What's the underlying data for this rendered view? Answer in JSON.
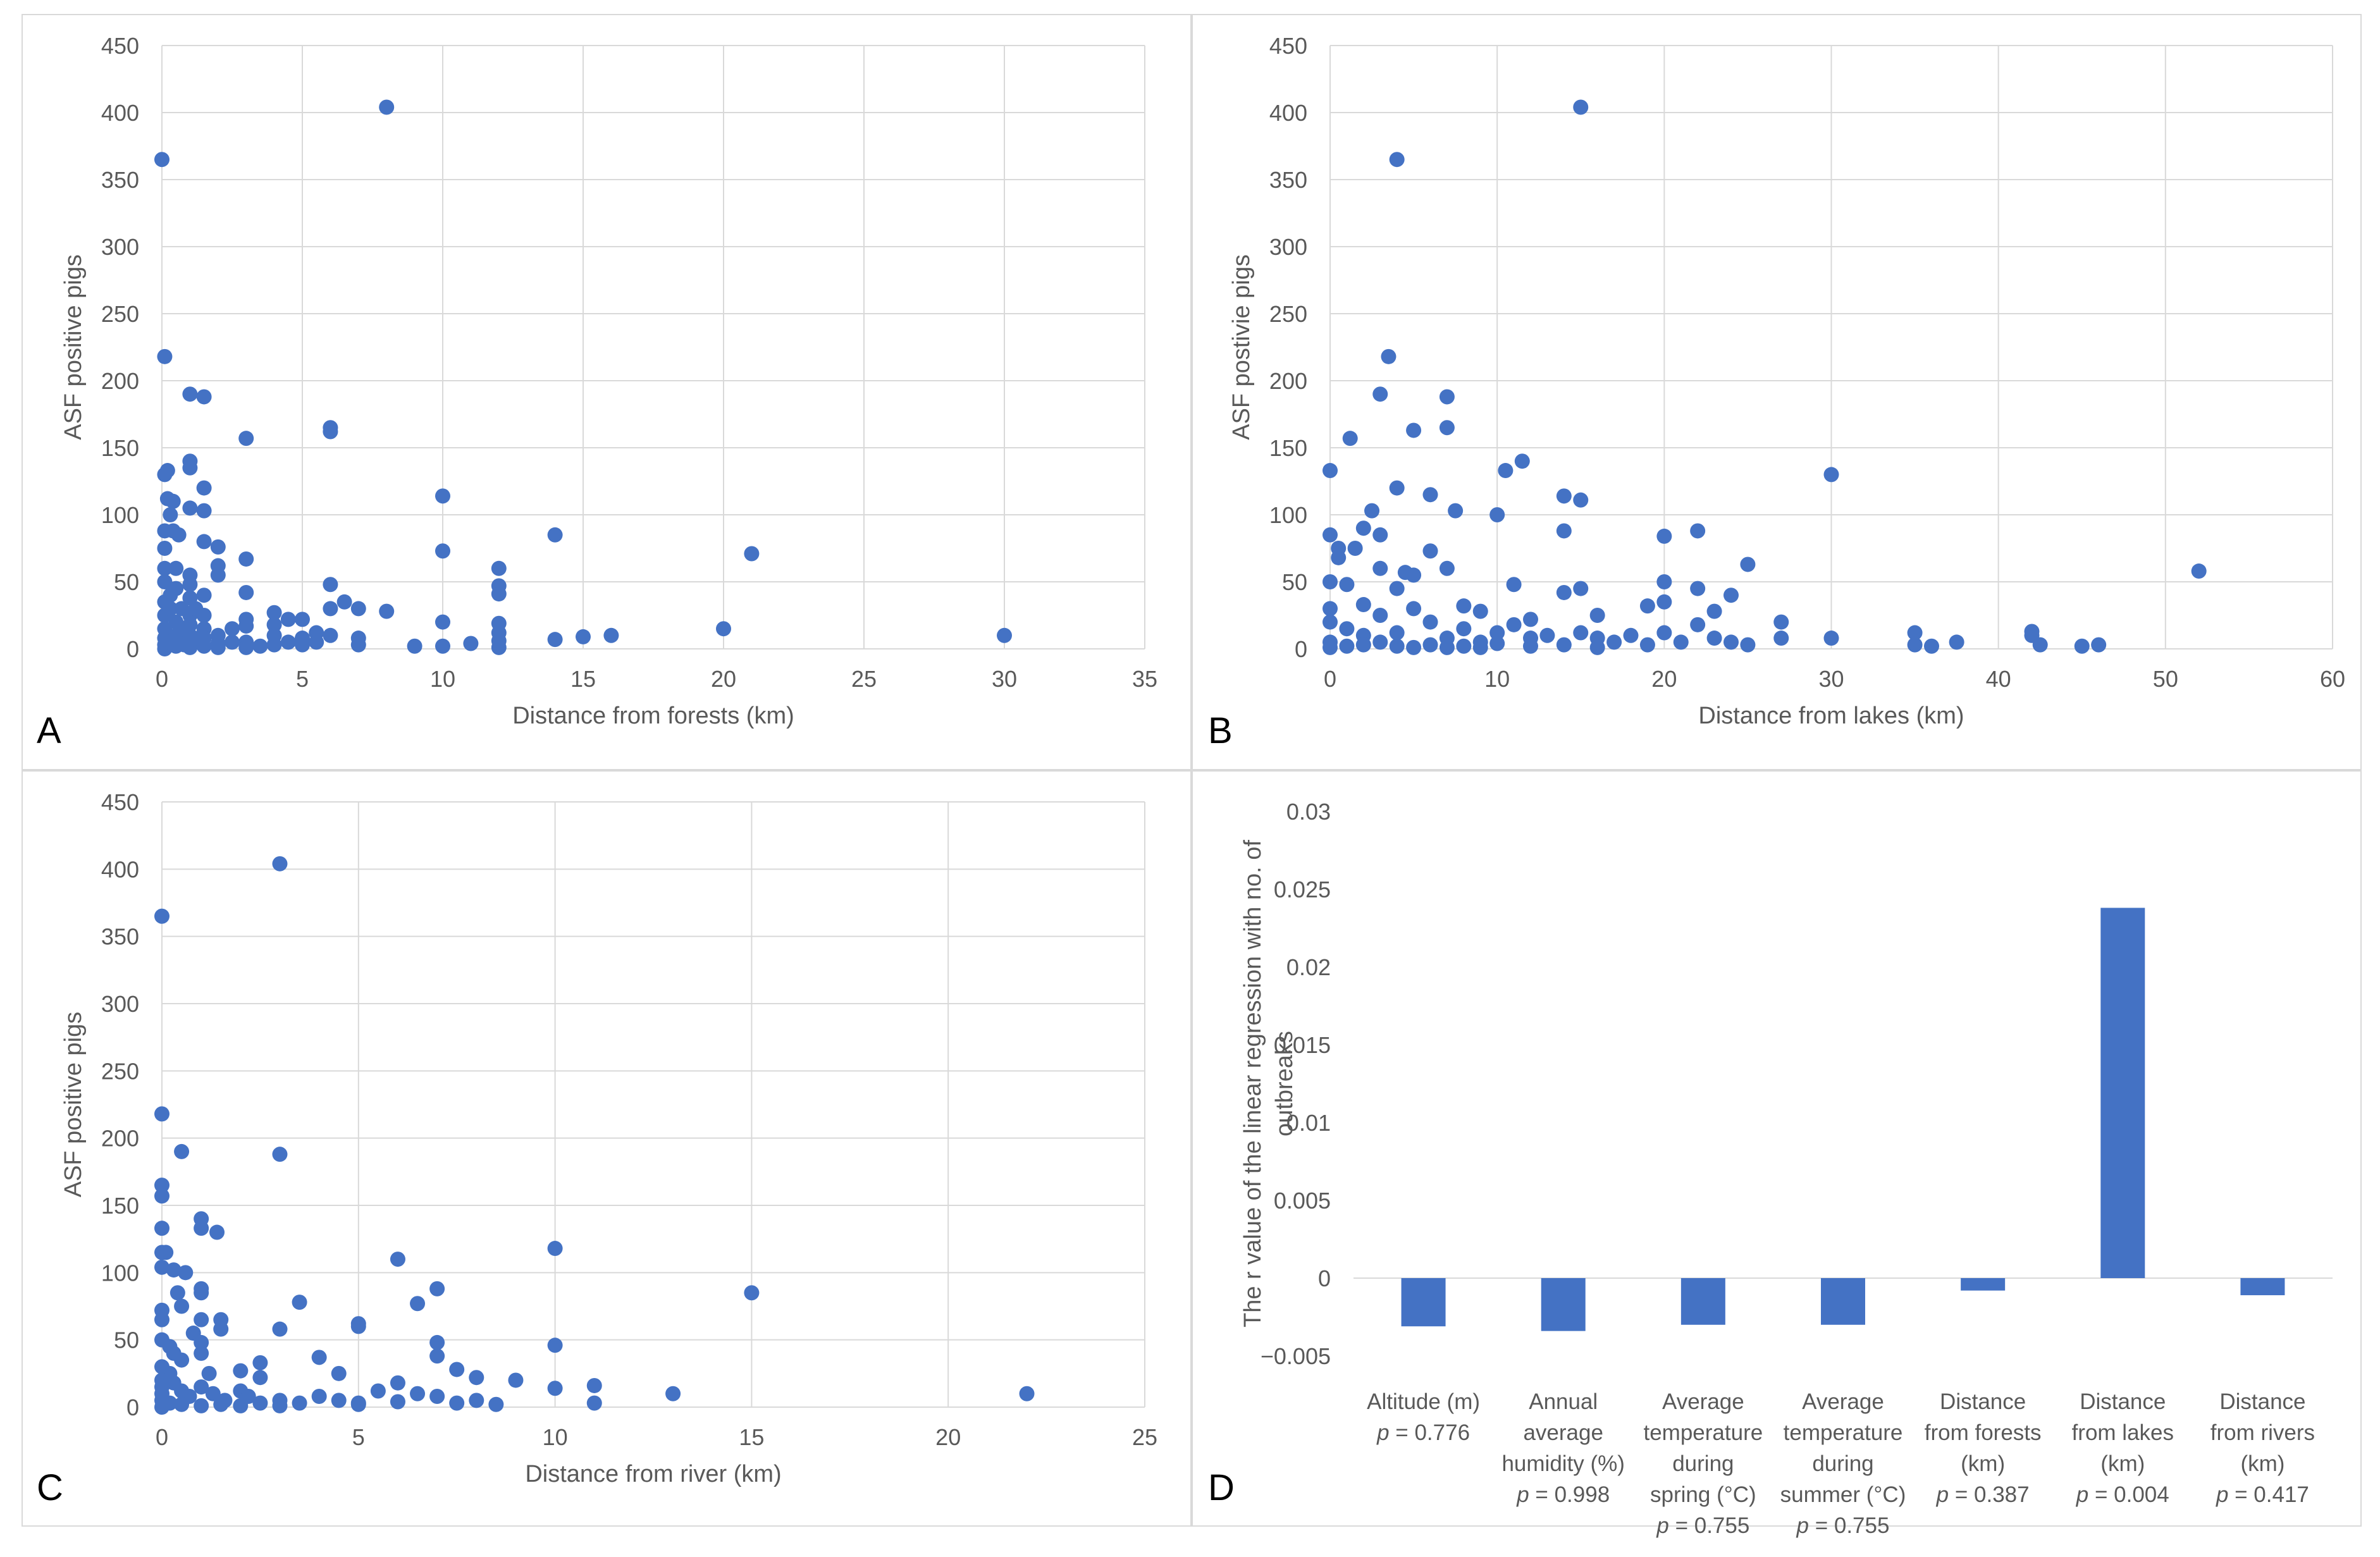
{
  "chart_data": [
    {
      "panel": "A",
      "type": "scatter",
      "xlabel": "Distance from forests (km)",
      "ylabel": "ASF positive pigs",
      "xlim": [
        0,
        35
      ],
      "ylim": [
        0,
        450
      ],
      "xticks": [
        0,
        5,
        10,
        15,
        20,
        25,
        30,
        35
      ],
      "yticks": [
        0,
        50,
        100,
        150,
        200,
        250,
        300,
        350,
        400,
        450
      ],
      "points": [
        [
          0,
          365
        ],
        [
          8,
          404
        ],
        [
          0.1,
          218
        ],
        [
          0.1,
          130
        ],
        [
          0.1,
          88
        ],
        [
          0.1,
          75
        ],
        [
          0.1,
          60
        ],
        [
          0.1,
          50
        ],
        [
          0.1,
          35
        ],
        [
          0.1,
          25
        ],
        [
          0.1,
          15
        ],
        [
          0.1,
          8
        ],
        [
          0.1,
          3
        ],
        [
          0.1,
          0
        ],
        [
          0.2,
          133
        ],
        [
          0.2,
          112
        ],
        [
          0.3,
          100
        ],
        [
          0.3,
          40
        ],
        [
          0.3,
          30
        ],
        [
          0.3,
          5
        ],
        [
          0.4,
          88
        ],
        [
          0.4,
          110
        ],
        [
          0.5,
          60
        ],
        [
          0.5,
          45
        ],
        [
          0.5,
          20
        ],
        [
          0.5,
          10
        ],
        [
          0.5,
          2
        ],
        [
          0.6,
          85
        ],
        [
          0.7,
          30
        ],
        [
          0.7,
          15
        ],
        [
          0.8,
          3
        ],
        [
          1,
          190
        ],
        [
          1,
          140
        ],
        [
          1,
          135
        ],
        [
          1,
          105
        ],
        [
          1,
          55
        ],
        [
          1,
          48
        ],
        [
          1,
          38
        ],
        [
          1,
          25
        ],
        [
          1,
          18
        ],
        [
          1,
          10
        ],
        [
          1,
          5
        ],
        [
          1,
          1
        ],
        [
          1.2,
          30
        ],
        [
          1.3,
          8
        ],
        [
          1.5,
          188
        ],
        [
          1.5,
          120
        ],
        [
          1.5,
          103
        ],
        [
          1.5,
          80
        ],
        [
          1.5,
          40
        ],
        [
          1.5,
          25
        ],
        [
          1.5,
          15
        ],
        [
          1.5,
          8
        ],
        [
          1.5,
          2
        ],
        [
          2,
          76
        ],
        [
          2,
          62
        ],
        [
          2,
          55
        ],
        [
          2,
          10
        ],
        [
          2,
          4
        ],
        [
          2,
          1
        ],
        [
          2.5,
          15
        ],
        [
          2.5,
          5
        ],
        [
          3,
          157
        ],
        [
          3,
          67
        ],
        [
          3,
          42
        ],
        [
          3,
          22
        ],
        [
          3,
          17
        ],
        [
          3,
          5
        ],
        [
          3,
          1
        ],
        [
          3.5,
          2
        ],
        [
          4,
          27
        ],
        [
          4,
          18
        ],
        [
          4,
          10
        ],
        [
          4,
          3
        ],
        [
          4.5,
          22
        ],
        [
          4.5,
          5
        ],
        [
          5,
          22
        ],
        [
          5,
          8
        ],
        [
          5,
          3
        ],
        [
          5.5,
          12
        ],
        [
          5.5,
          5
        ],
        [
          6,
          165
        ],
        [
          6,
          162
        ],
        [
          6,
          48
        ],
        [
          6,
          30
        ],
        [
          6,
          10
        ],
        [
          6.5,
          35
        ],
        [
          7,
          30
        ],
        [
          7,
          8
        ],
        [
          7,
          3
        ],
        [
          8,
          28
        ],
        [
          9,
          2
        ],
        [
          10,
          114
        ],
        [
          10,
          73
        ],
        [
          10,
          20
        ],
        [
          10,
          2
        ],
        [
          11,
          4
        ],
        [
          12,
          60
        ],
        [
          12,
          47
        ],
        [
          12,
          41
        ],
        [
          12,
          19
        ],
        [
          12,
          12
        ],
        [
          12,
          6
        ],
        [
          12,
          1
        ],
        [
          14,
          85
        ],
        [
          14,
          7
        ],
        [
          15,
          9
        ],
        [
          16,
          10
        ],
        [
          20,
          15
        ],
        [
          21,
          71
        ],
        [
          30,
          10
        ]
      ]
    },
    {
      "panel": "B",
      "type": "scatter",
      "xlabel": "Distance from lakes (km)",
      "ylabel": "ASF postivie pigs",
      "xlim": [
        0,
        60
      ],
      "ylim": [
        0,
        450
      ],
      "xticks": [
        0,
        10,
        20,
        30,
        40,
        50,
        60
      ],
      "yticks": [
        0,
        50,
        100,
        150,
        200,
        250,
        300,
        350,
        400,
        450
      ],
      "points": [
        [
          15,
          404
        ],
        [
          4,
          365
        ],
        [
          3.5,
          218
        ],
        [
          3,
          190
        ],
        [
          7,
          188
        ],
        [
          7,
          165
        ],
        [
          5,
          163
        ],
        [
          1.2,
          157
        ],
        [
          11.5,
          140
        ],
        [
          0,
          133
        ],
        [
          10.5,
          133
        ],
        [
          30,
          130
        ],
        [
          4,
          120
        ],
        [
          6,
          115
        ],
        [
          14,
          114
        ],
        [
          15,
          111
        ],
        [
          2.5,
          103
        ],
        [
          7.5,
          103
        ],
        [
          10,
          100
        ],
        [
          0,
          85
        ],
        [
          3,
          85
        ],
        [
          2,
          90
        ],
        [
          14,
          88
        ],
        [
          20,
          84
        ],
        [
          22,
          88
        ],
        [
          0.5,
          75
        ],
        [
          1.5,
          75
        ],
        [
          0.5,
          68
        ],
        [
          6,
          73
        ],
        [
          3,
          60
        ],
        [
          4.5,
          57
        ],
        [
          5,
          55
        ],
        [
          7,
          60
        ],
        [
          25,
          63
        ],
        [
          52,
          58
        ],
        [
          0,
          50
        ],
        [
          1,
          48
        ],
        [
          4,
          45
        ],
        [
          11,
          48
        ],
        [
          14,
          42
        ],
        [
          15,
          45
        ],
        [
          20,
          50
        ],
        [
          22,
          45
        ],
        [
          24,
          40
        ],
        [
          0,
          30
        ],
        [
          2,
          33
        ],
        [
          3,
          25
        ],
        [
          5,
          30
        ],
        [
          8,
          32
        ],
        [
          9,
          28
        ],
        [
          12,
          22
        ],
        [
          16,
          25
        ],
        [
          19,
          32
        ],
        [
          20,
          35
        ],
        [
          23,
          28
        ],
        [
          0,
          20
        ],
        [
          1,
          15
        ],
        [
          2,
          10
        ],
        [
          3,
          5
        ],
        [
          4,
          12
        ],
        [
          6,
          20
        ],
        [
          7,
          8
        ],
        [
          8,
          15
        ],
        [
          9,
          5
        ],
        [
          10,
          12
        ],
        [
          11,
          18
        ],
        [
          12,
          8
        ],
        [
          13,
          10
        ],
        [
          14,
          3
        ],
        [
          15,
          12
        ],
        [
          16,
          8
        ],
        [
          17,
          5
        ],
        [
          18,
          10
        ],
        [
          19,
          3
        ],
        [
          20,
          12
        ],
        [
          21,
          5
        ],
        [
          22,
          18
        ],
        [
          23,
          8
        ],
        [
          24,
          5
        ],
        [
          25,
          3
        ],
        [
          27,
          20
        ],
        [
          27,
          8
        ],
        [
          0,
          5
        ],
        [
          0,
          1
        ],
        [
          1,
          2
        ],
        [
          2,
          3
        ],
        [
          4,
          2
        ],
        [
          5,
          1
        ],
        [
          6,
          3
        ],
        [
          7,
          1
        ],
        [
          8,
          2
        ],
        [
          9,
          1
        ],
        [
          10,
          4
        ],
        [
          12,
          2
        ],
        [
          16,
          1
        ],
        [
          30,
          8
        ],
        [
          35,
          12
        ],
        [
          35,
          3
        ],
        [
          36,
          2
        ],
        [
          37.5,
          5
        ],
        [
          42,
          13
        ],
        [
          42,
          10
        ],
        [
          42.5,
          3
        ],
        [
          45,
          2
        ],
        [
          46,
          3
        ]
      ]
    },
    {
      "panel": "C",
      "type": "scatter",
      "xlabel": "Distance from river (km)",
      "ylabel": "ASF positive pigs",
      "xlim": [
        0,
        25
      ],
      "ylim": [
        0,
        450
      ],
      "xticks": [
        0,
        5,
        10,
        15,
        20,
        25
      ],
      "yticks": [
        0,
        50,
        100,
        150,
        200,
        250,
        300,
        350,
        400,
        450
      ],
      "points": [
        [
          0,
          365
        ],
        [
          3,
          404
        ],
        [
          0,
          218
        ],
        [
          0.5,
          190
        ],
        [
          3,
          188
        ],
        [
          0,
          165
        ],
        [
          0,
          157
        ],
        [
          1,
          140
        ],
        [
          1,
          133
        ],
        [
          1.4,
          130
        ],
        [
          0,
          133
        ],
        [
          0,
          115
        ],
        [
          0.1,
          115
        ],
        [
          0,
          104
        ],
        [
          0.3,
          102
        ],
        [
          0.6,
          100
        ],
        [
          6,
          110
        ],
        [
          10,
          118
        ],
        [
          1,
          88
        ],
        [
          1,
          85
        ],
        [
          0.4,
          85
        ],
        [
          0.5,
          75
        ],
        [
          0,
          72
        ],
        [
          0,
          65
        ],
        [
          1,
          65
        ],
        [
          1.5,
          65
        ],
        [
          1.5,
          58
        ],
        [
          0.8,
          55
        ],
        [
          3.5,
          78
        ],
        [
          3,
          58
        ],
        [
          5,
          62
        ],
        [
          5,
          60
        ],
        [
          6.5,
          77
        ],
        [
          7,
          88
        ],
        [
          15,
          85
        ],
        [
          0,
          50
        ],
        [
          0.2,
          45
        ],
        [
          0.3,
          40
        ],
        [
          1,
          48
        ],
        [
          1,
          40
        ],
        [
          0.5,
          35
        ],
        [
          2.5,
          33
        ],
        [
          4,
          37
        ],
        [
          7,
          48
        ],
        [
          7,
          38
        ],
        [
          10,
          46
        ],
        [
          0,
          30
        ],
        [
          0.2,
          25
        ],
        [
          1.2,
          25
        ],
        [
          2,
          27
        ],
        [
          2.5,
          22
        ],
        [
          4.5,
          25
        ],
        [
          7.5,
          28
        ],
        [
          8,
          22
        ],
        [
          9,
          20
        ],
        [
          0,
          20
        ],
        [
          0,
          15
        ],
        [
          0,
          10
        ],
        [
          0,
          5
        ],
        [
          0,
          0
        ],
        [
          0.3,
          18
        ],
        [
          0.5,
          12
        ],
        [
          0.7,
          8
        ],
        [
          1,
          15
        ],
        [
          1.3,
          10
        ],
        [
          1.6,
          5
        ],
        [
          2,
          12
        ],
        [
          2.2,
          8
        ],
        [
          2.5,
          3
        ],
        [
          3,
          5
        ],
        [
          3.5,
          3
        ],
        [
          4,
          8
        ],
        [
          4.5,
          5
        ],
        [
          5,
          3
        ],
        [
          5.5,
          12
        ],
        [
          6,
          18
        ],
        [
          6.5,
          10
        ],
        [
          7,
          8
        ],
        [
          7.5,
          3
        ],
        [
          8,
          5
        ],
        [
          8.5,
          2
        ],
        [
          10,
          14
        ],
        [
          11,
          16
        ],
        [
          11,
          3
        ],
        [
          13,
          10
        ],
        [
          22,
          10
        ],
        [
          0.2,
          3
        ],
        [
          0.5,
          2
        ],
        [
          1,
          1
        ],
        [
          1.5,
          2
        ],
        [
          2,
          1
        ],
        [
          3,
          1
        ],
        [
          5,
          2
        ],
        [
          6,
          4
        ]
      ]
    },
    {
      "panel": "D",
      "type": "bar",
      "ylabel": "The r value of the linear regression with no. of outbreaks",
      "ylim": [
        -0.005,
        0.03
      ],
      "yticks": [
        -0.005,
        0,
        0.005,
        0.01,
        0.015,
        0.02,
        0.025,
        0.03
      ],
      "ytick_labels": [
        "−0.005",
        "0",
        "0.005",
        "0.01",
        "0.015",
        "0.02",
        "0.025",
        "0.03"
      ],
      "categories": [
        {
          "lines": [
            "Altitude (m)"
          ],
          "p": "p = 0.776"
        },
        {
          "lines": [
            "Annual",
            "average",
            "humidity (%)"
          ],
          "p": "p = 0.998"
        },
        {
          "lines": [
            "Average",
            "temperature",
            "during",
            "spring (°C)"
          ],
          "p": "p = 0.755"
        },
        {
          "lines": [
            "Average",
            "temperature",
            "during",
            "summer (°C)"
          ],
          "p": "p = 0.755"
        },
        {
          "lines": [
            "Distance",
            "from forests",
            "(km)"
          ],
          "p": "p = 0.387"
        },
        {
          "lines": [
            "Distance",
            "from lakes",
            "(km)"
          ],
          "p": "p = 0.004"
        },
        {
          "lines": [
            "Distance",
            "from rivers",
            "(km)"
          ],
          "p": "p = 0.417"
        }
      ],
      "values": [
        -0.0031,
        -0.0034,
        -0.003,
        -0.003,
        -0.0008,
        0.0238,
        -0.0011
      ]
    }
  ],
  "panel_labels": {
    "A": "A",
    "B": "B",
    "C": "C",
    "D": "D"
  }
}
